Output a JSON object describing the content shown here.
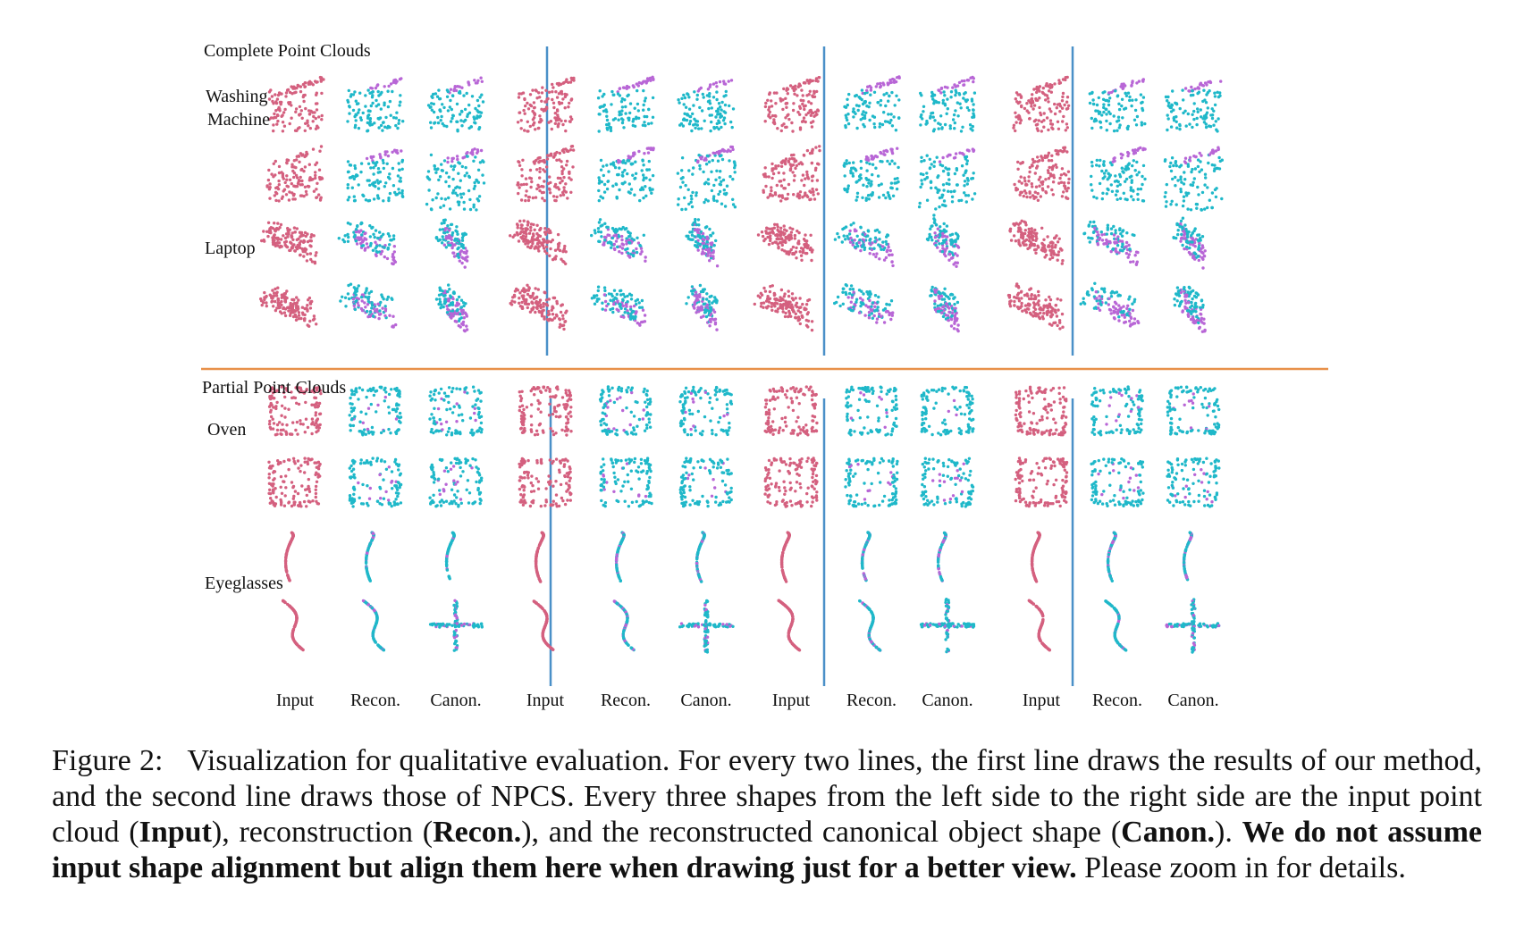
{
  "figure": {
    "sections": [
      {
        "title": "Complete Point Clouds",
        "categories": [
          {
            "name_lines": [
              "Washing",
              "Machine"
            ],
            "shape": "box-lid"
          },
          {
            "name_lines": [
              "Laptop"
            ],
            "shape": "laptop"
          }
        ]
      },
      {
        "title": "Partial Point Clouds",
        "categories": [
          {
            "name_lines": [
              "Oven"
            ],
            "shape": "oven"
          },
          {
            "name_lines": [
              "Eyeglasses"
            ],
            "shape": "glasses"
          }
        ]
      }
    ],
    "column_labels": [
      "Input",
      "Recon.",
      "Canon.",
      "Input",
      "Recon.",
      "Canon.",
      "Input",
      "Recon.",
      "Canon.",
      "Input",
      "Recon.",
      "Canon."
    ],
    "colors": {
      "input": "#d4607f",
      "recon": "#1fb8c9",
      "part": "#b866d6",
      "column_divider": "#4a90c8",
      "section_divider": "#e8914a"
    }
  },
  "caption": {
    "lead": "Figure 2:",
    "part1": "Visualization for qualitative evaluation. For every two lines, the first line draws the results of our method, and the second line draws those of NPCS. Every three shapes from the left side to the right side are the input point cloud (",
    "term1": "Input",
    "part2": "), reconstruction (",
    "term2": "Recon.",
    "part3": "), and the reconstructed canonical object shape (",
    "term3": "Canon.",
    "part4": "). ",
    "bold_sentence": "We do not assume input shape alignment but align them here when drawing just for a better view.",
    "part5": " Please zoom in for details."
  }
}
